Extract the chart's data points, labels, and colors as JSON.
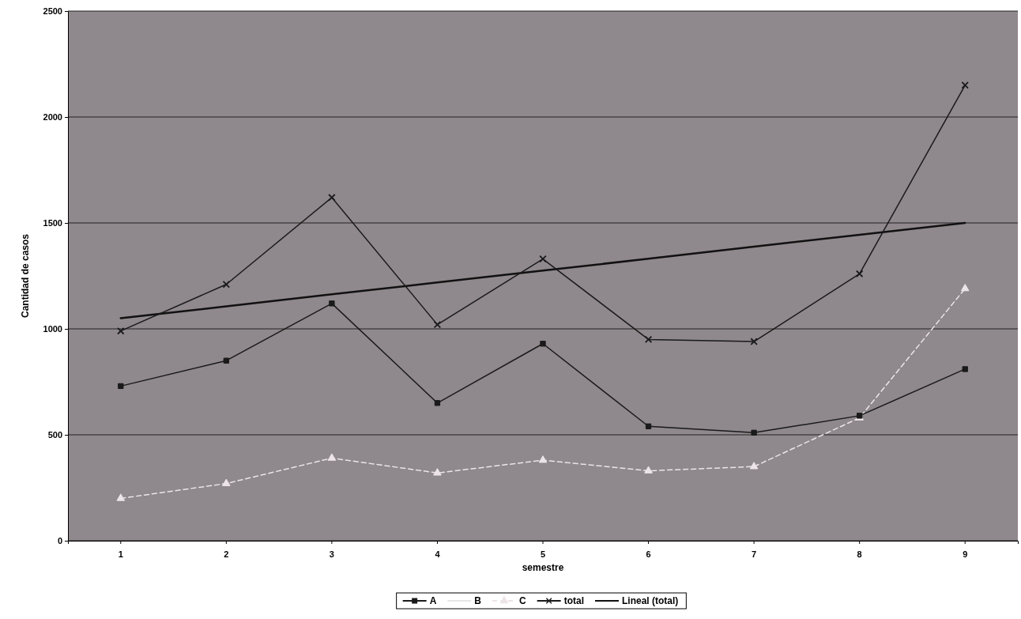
{
  "chart_data": {
    "type": "line",
    "xlabel": "semestre",
    "ylabel": "Cantidad de casos",
    "categories": [
      "1",
      "2",
      "3",
      "4",
      "5",
      "6",
      "7",
      "8",
      "9"
    ],
    "ylim": [
      0,
      2500
    ],
    "yticks": [
      0,
      500,
      1000,
      1500,
      2000,
      2500
    ],
    "grid": "y",
    "legend": "bottom",
    "series": [
      {
        "name": "A",
        "color": "#1a1a1a",
        "marker": "square",
        "values": [
          730,
          850,
          1120,
          650,
          930,
          540,
          510,
          590,
          810
        ]
      },
      {
        "name": "B",
        "color": "#f2f2f2",
        "marker": "none",
        "values": [
          null,
          null,
          null,
          null,
          null,
          null,
          null,
          null,
          null
        ]
      },
      {
        "name": "C",
        "color": "#ece4e8",
        "marker": "triangle",
        "line_style": "dashed",
        "values": [
          200,
          270,
          390,
          320,
          380,
          330,
          350,
          580,
          1190
        ]
      },
      {
        "name": "total",
        "color": "#1a1a1a",
        "marker": "cross",
        "values": [
          990,
          1210,
          1620,
          1020,
          1330,
          950,
          940,
          1260,
          2150
        ]
      },
      {
        "name": "Lineal (total)",
        "color": "#111111",
        "marker": "none",
        "values": [
          1050,
          1106,
          1163,
          1219,
          1275,
          1331,
          1388,
          1444,
          1500
        ]
      }
    ]
  }
}
